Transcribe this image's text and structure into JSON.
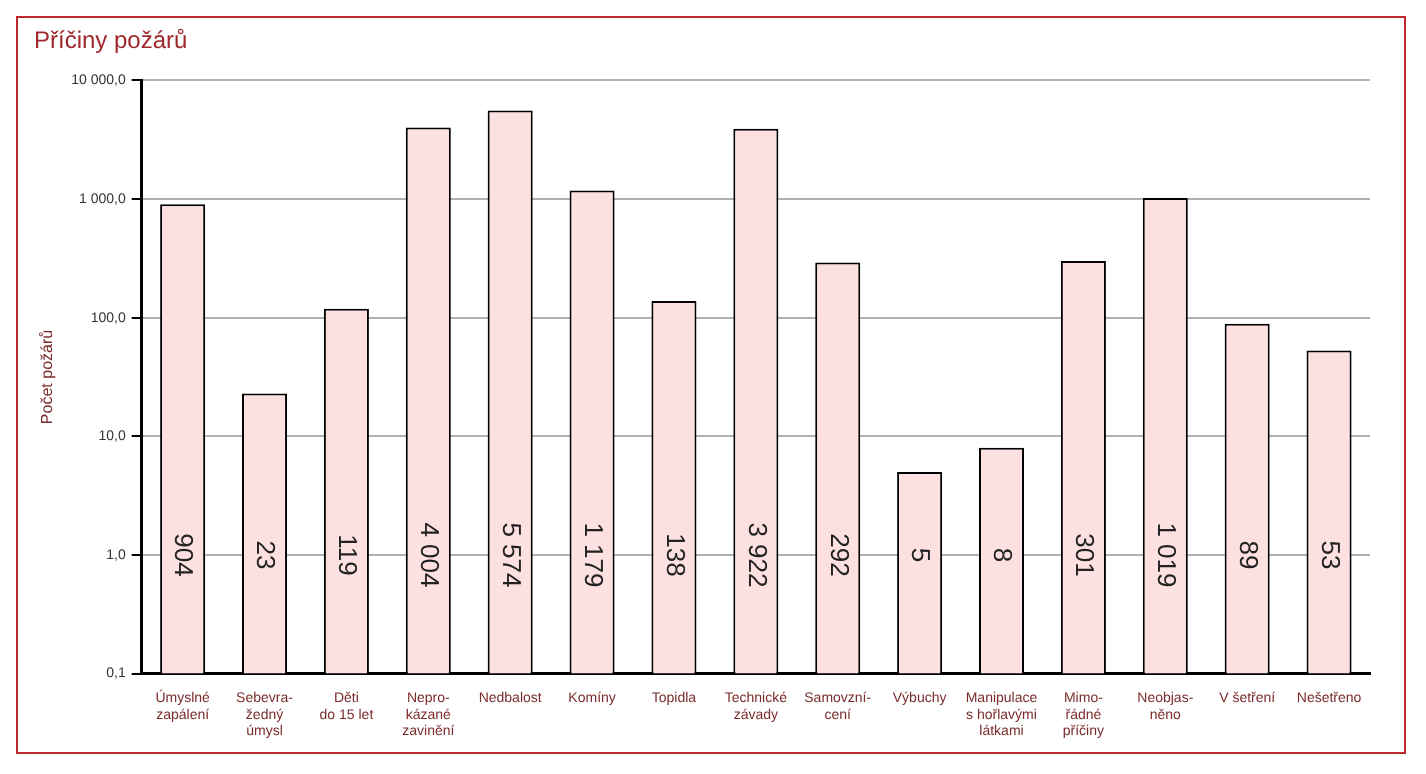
{
  "chart_data": {
    "type": "bar",
    "title": "Příčiny požárů",
    "ylabel": "Počet požárů",
    "categories": [
      "Úmyslné\nzapálení",
      "Sebevra-\nžedný\númysl",
      "Děti\ndo 15 let",
      "Nepro-\nkázané\nzavinění",
      "Nedbalost",
      "Komíny",
      "Topidla",
      "Technické\nzávady",
      "Samovzní-\ncení",
      "Výbuchy",
      "Manipulace\ns hořlavými\nlátkami",
      "Mimo-\nřádné\npříčiny",
      "Neobjas-\nněno",
      "V šetření",
      "Nešetřeno"
    ],
    "values": [
      904,
      23,
      119,
      4004,
      5574,
      1179,
      138,
      3922,
      292,
      5,
      8,
      301,
      1019,
      89,
      53
    ],
    "value_labels": [
      "904",
      "23",
      "119",
      "4 004",
      "5 574",
      "1 179",
      "138",
      "3 922",
      "292",
      "5",
      "8",
      "301",
      "1 019",
      "89",
      "53"
    ],
    "color": "#fde0e0",
    "log": "y",
    "ylim": [
      0.1,
      10000
    ],
    "yticks": [
      {
        "value": 0.1,
        "label": "0,1"
      },
      {
        "value": 1,
        "label": "1,0"
      },
      {
        "value": 10,
        "label": "10,0"
      },
      {
        "value": 100,
        "label": "100,0"
      },
      {
        "value": 1000,
        "label": "1 000,0"
      },
      {
        "value": 10000,
        "label": "10 000,0"
      }
    ],
    "grid": "y",
    "legend": false
  }
}
